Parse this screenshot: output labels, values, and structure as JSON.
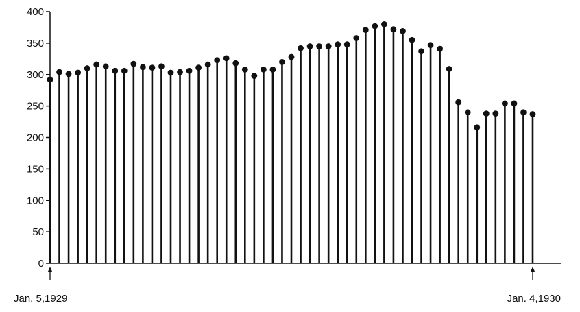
{
  "chart_data": {
    "type": "bar",
    "mark_style": "stem with filled circle",
    "color": "#111111",
    "background": "#ffffff",
    "grid": false,
    "ylim": [
      0,
      400
    ],
    "y_ticks": [
      0,
      50,
      100,
      150,
      200,
      250,
      300,
      350,
      400
    ],
    "start_label": "Jan. 5,1929",
    "end_label": "Jan. 4,1930",
    "values": [
      292,
      304,
      301,
      303,
      310,
      316,
      313,
      306,
      306,
      317,
      312,
      311,
      313,
      303,
      304,
      306,
      311,
      316,
      323,
      326,
      318,
      308,
      298,
      308,
      308,
      320,
      328,
      342,
      345,
      345,
      345,
      348,
      348,
      358,
      371,
      377,
      380,
      372,
      369,
      355,
      337,
      347,
      341,
      309,
      256,
      240,
      216,
      238,
      238,
      254,
      254,
      240,
      237
    ]
  }
}
